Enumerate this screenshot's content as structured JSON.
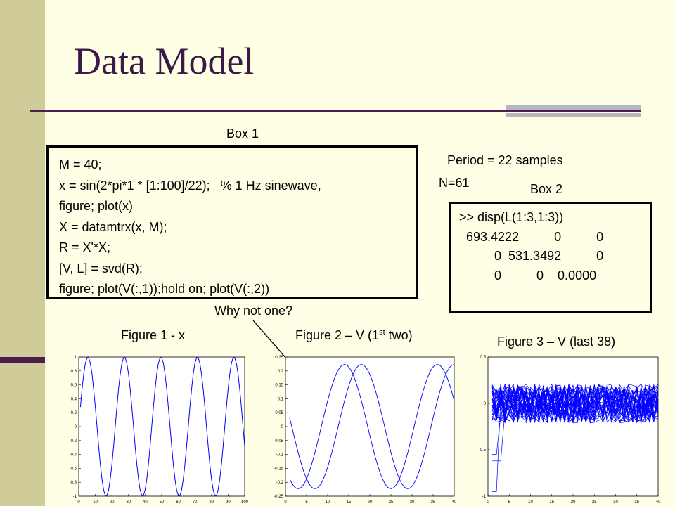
{
  "slide": {
    "title": "Data Model",
    "box1_label": "Box 1",
    "box2_label": "Box 2",
    "period_text": "Period = 22 samples",
    "n_text": "N=61",
    "why_text": "Why not one?",
    "code_lines": [
      "M = 40;",
      "x = sin(2*pi*1 * [1:100]/22);   % 1 Hz sinewave,",
      "figure; plot(x)",
      "X = datamtrx(x, M);",
      "R = X'*X;",
      "[V, L] = svd(R);",
      "figure; plot(V(:,1));hold on; plot(V(:,2))"
    ],
    "matrix_lines": [
      ">> disp(L(1:3,1:3))",
      "  693.4222          0          0",
      "          0  531.3492          0",
      "          0          0    0.0000"
    ],
    "fig1_caption": "Figure 1 - x",
    "fig2_caption_prefix": "Figure 2 – V (1",
    "fig2_caption_sup": "st",
    "fig2_caption_suffix": " two)",
    "fig3_caption": "Figure 3 – V (last 38)",
    "colors": {
      "accent": "#3c1a48",
      "sidebar": "#cfcc99",
      "background": "#ffffe6",
      "plot_line": "#0000ff"
    }
  },
  "chart_data": [
    {
      "type": "line",
      "name": "Figure 1 - x",
      "series_formula": "sin(2*pi*n/22), n = 1..100",
      "xlim": [
        0,
        100
      ],
      "ylim": [
        -1,
        1
      ],
      "xticks": [
        "0",
        "10",
        "20",
        "30",
        "40",
        "50",
        "60",
        "70",
        "80",
        "90",
        "100"
      ],
      "yticks": [
        "1",
        "0.8",
        "0.6",
        "0.4",
        "0.2",
        "0",
        "-0.2",
        "-0.4",
        "-0.6",
        "-0.8",
        "-1"
      ]
    },
    {
      "type": "line",
      "name": "Figure 2 – V (1st two)",
      "series_formula": "0.223*sin(2*pi*n/22 + phase), two phase-shifted series, n = 1..40",
      "xlim": [
        0,
        40
      ],
      "ylim": [
        -0.25,
        0.25
      ],
      "xticks": [
        "0",
        "5",
        "10",
        "15",
        "20",
        "25",
        "30",
        "35",
        "40"
      ],
      "yticks": [
        "0.25",
        "0.2",
        "0.15",
        "0.1",
        "0.05",
        "0",
        "-0.05",
        "-0.1",
        "-0.15",
        "-0.2",
        "-0.25"
      ]
    },
    {
      "type": "line",
      "name": "Figure 3 – V (last 38)",
      "series_formula": "38 noisy eigenvector columns, n = 1..40",
      "xlim": [
        0,
        40
      ],
      "ylim": [
        -1,
        0.5
      ],
      "xticks": [
        "0",
        "5",
        "10",
        "15",
        "20",
        "25",
        "30",
        "35",
        "40"
      ],
      "yticks": [
        "0.5",
        "0",
        "-0.5",
        "-1"
      ]
    }
  ]
}
